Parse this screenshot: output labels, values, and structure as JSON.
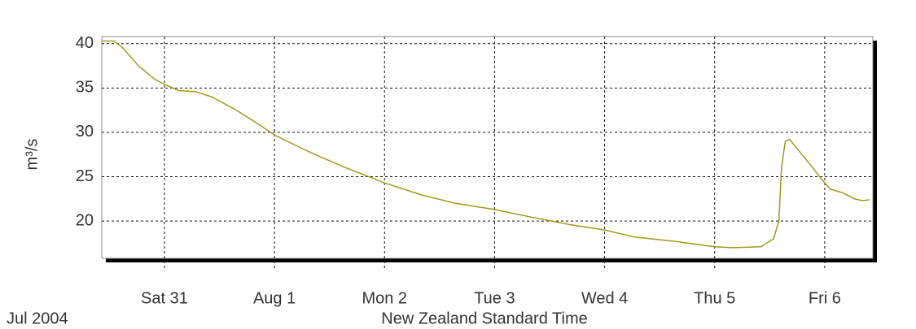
{
  "chart_data": {
    "type": "line",
    "ylabel": "m³/s",
    "xlabel": "New Zealand Standard Time",
    "x_period_label": "Jul 2004",
    "color": "#9c9a1a",
    "grid": true,
    "x": [
      "2004-07-30T10:20",
      "2004-07-30T13:00",
      "2004-07-30T14:45",
      "2004-07-30T18:20",
      "2004-07-30T21:50",
      "2004-07-31T00:00",
      "2004-07-31T03:10",
      "2004-07-31T06:45",
      "2004-07-31T10:20",
      "2004-07-31T15:40",
      "2004-07-31T20:55",
      "2004-08-01T00:00",
      "2004-08-01T07:35",
      "2004-08-01T14:40",
      "2004-08-02T00:00",
      "2004-08-02T08:25",
      "2004-08-02T15:30",
      "2004-08-03T00:00",
      "2004-08-03T07:30",
      "2004-08-03T16:25",
      "2004-08-04T00:00",
      "2004-08-04T06:35",
      "2004-08-04T15:30",
      "2004-08-05T00:00",
      "2004-08-05T03:55",
      "2004-08-05T10:05",
      "2004-08-05T12:50",
      "2004-08-05T14:00",
      "2004-08-05T14:35",
      "2004-08-05T15:25",
      "2004-08-05T16:20",
      "2004-08-05T19:50",
      "2004-08-06T00:00",
      "2004-08-06T01:15",
      "2004-08-06T03:50",
      "2004-08-06T06:30",
      "2004-08-06T08:20",
      "2004-08-06T09:45"
    ],
    "values": [
      40.3,
      40.3,
      39.6,
      37.5,
      36.0,
      35.4,
      34.7,
      34.6,
      34.0,
      32.5,
      30.8,
      29.7,
      27.8,
      26.2,
      24.3,
      22.9,
      22.0,
      21.3,
      20.5,
      19.6,
      19.0,
      18.2,
      17.7,
      17.1,
      17.0,
      17.1,
      18.0,
      20.0,
      26.0,
      29.0,
      29.2,
      27.0,
      24.3,
      23.6,
      23.2,
      22.5,
      22.3,
      22.4
    ],
    "xlim": [
      "2004-07-30T10:20",
      "2004-08-06T10:30"
    ],
    "xticks": [
      {
        "value": "2004-07-31T00:00",
        "label": "Sat 31"
      },
      {
        "value": "2004-08-01T00:00",
        "label": "Aug 1"
      },
      {
        "value": "2004-08-02T00:00",
        "label": "Mon 2"
      },
      {
        "value": "2004-08-03T00:00",
        "label": "Tue 3"
      },
      {
        "value": "2004-08-04T00:00",
        "label": "Wed 4"
      },
      {
        "value": "2004-08-05T00:00",
        "label": "Thu 5"
      },
      {
        "value": "2004-08-06T00:00",
        "label": "Fri 6"
      }
    ],
    "ylim": [
      15.8,
      40.8
    ],
    "yticks": [
      20,
      25,
      30,
      35,
      40
    ]
  }
}
